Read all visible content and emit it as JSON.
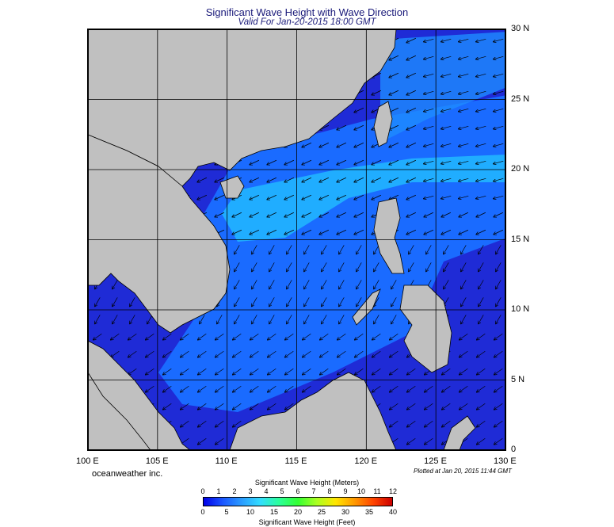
{
  "title": "Significant Wave Height with Wave Direction",
  "subtitle": "Valid For Jan-20-2015 18:00 GMT",
  "credit": "oceanweather inc.",
  "plotted": "Plotted at Jan 20, 2015 11:44 GMT",
  "lon_labels": [
    "100 E",
    "105 E",
    "110 E",
    "115 E",
    "120 E",
    "125 E",
    "130 E"
  ],
  "lat_labels": [
    "30 N",
    "25 N",
    "20 N",
    "15 N",
    "10 N",
    "5 N",
    "0"
  ],
  "colorbar": {
    "title_top": "Significant Wave Height (Meters)",
    "title_bottom": "Significant Wave Height (Feet)",
    "meters_ticks": [
      "0",
      "1",
      "2",
      "3",
      "4",
      "5",
      "6",
      "7",
      "8",
      "9",
      "10",
      "11",
      "12"
    ],
    "feet_ticks": [
      "0",
      "5",
      "10",
      "15",
      "20",
      "25",
      "30",
      "35",
      "40"
    ],
    "colors": [
      "#0000e8",
      "#1a55ff",
      "#2b9bff",
      "#33ddff",
      "#2bff9b",
      "#33ff33",
      "#aaff22",
      "#ffe600",
      "#ff9900",
      "#ff4400",
      "#cc0000"
    ]
  },
  "colors": {
    "land": "#c0c0c0",
    "sea_deep": "#1f2bd6",
    "sea_mid": "#1a6bff",
    "sea_light": "#22b8ff",
    "frame": "#000000"
  }
}
